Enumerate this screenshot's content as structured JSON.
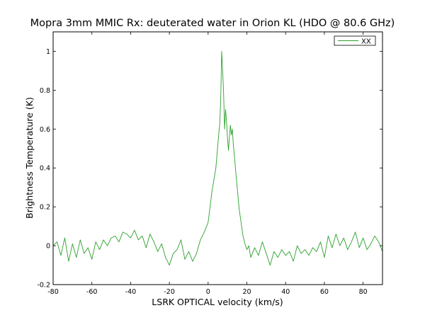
{
  "chart_data": {
    "type": "line",
    "title": "Mopra 3mm MMIC Rx: deuterated water in Orion KL (HDO @ 80.6 GHz)",
    "xlabel": "LSRK OPTICAL velocity (km/s)",
    "ylabel": "Brightness Temperature (K)",
    "xlim": [
      -80,
      90
    ],
    "ylim": [
      -0.2,
      1.1
    ],
    "xticks": [
      -80,
      -60,
      -40,
      -20,
      0,
      20,
      40,
      60,
      80
    ],
    "xtick_labels": [
      "-80",
      "-60",
      "-40",
      "-20",
      "0",
      "20",
      "40",
      "60",
      "80"
    ],
    "yticks": [
      -0.2,
      0,
      0.2,
      0.4,
      0.6,
      0.8,
      1
    ],
    "ytick_labels": [
      "-0.2",
      "0",
      "0.2",
      "0.4",
      "0.6",
      "0.8",
      "1"
    ],
    "grid": false,
    "legend_position": "top-right",
    "series": [
      {
        "name": "XX",
        "color": "#2ca02c",
        "x": [
          -80,
          -78,
          -76,
          -74,
          -72,
          -70,
          -68,
          -66,
          -64,
          -62,
          -60,
          -58,
          -56,
          -54,
          -52,
          -50,
          -48,
          -46,
          -44,
          -42,
          -40,
          -38,
          -36,
          -34,
          -32,
          -30,
          -28,
          -26,
          -24,
          -22,
          -20,
          -18,
          -16,
          -14,
          -12,
          -10,
          -8,
          -6,
          -4,
          -2,
          0,
          1,
          2,
          3,
          4,
          5,
          6,
          6.5,
          7,
          7.5,
          8,
          8.5,
          9,
          9.5,
          10,
          10.5,
          11,
          11.5,
          12,
          12.5,
          13,
          13.5,
          14,
          15,
          16,
          17,
          18,
          19,
          20,
          21,
          22,
          24,
          26,
          28,
          30,
          32,
          34,
          36,
          38,
          40,
          42,
          44,
          46,
          48,
          50,
          52,
          54,
          56,
          58,
          60,
          62,
          64,
          66,
          68,
          70,
          72,
          74,
          76,
          78,
          80,
          82,
          84,
          86,
          88,
          90
        ],
        "y": [
          0.0,
          0.02,
          -0.05,
          0.04,
          -0.08,
          0.01,
          -0.06,
          0.03,
          -0.04,
          -0.01,
          -0.07,
          0.02,
          -0.02,
          0.03,
          0.0,
          0.04,
          0.05,
          0.02,
          0.07,
          0.06,
          0.04,
          0.08,
          0.03,
          0.05,
          -0.01,
          0.06,
          0.02,
          -0.03,
          0.01,
          -0.06,
          -0.1,
          -0.04,
          -0.02,
          0.03,
          -0.07,
          -0.03,
          -0.08,
          -0.04,
          0.03,
          0.07,
          0.12,
          0.2,
          0.28,
          0.34,
          0.4,
          0.52,
          0.63,
          0.75,
          1.0,
          0.9,
          0.78,
          0.6,
          0.7,
          0.64,
          0.55,
          0.49,
          0.56,
          0.62,
          0.57,
          0.6,
          0.52,
          0.47,
          0.41,
          0.3,
          0.19,
          0.12,
          0.05,
          0.01,
          -0.02,
          0.0,
          -0.06,
          -0.01,
          -0.05,
          0.02,
          -0.04,
          -0.1,
          -0.03,
          -0.06,
          -0.02,
          -0.05,
          -0.03,
          -0.08,
          0.0,
          -0.04,
          -0.02,
          -0.05,
          -0.01,
          -0.03,
          0.02,
          -0.06,
          0.05,
          -0.01,
          0.06,
          0.0,
          0.04,
          -0.02,
          0.02,
          0.07,
          -0.01,
          0.04,
          -0.02,
          0.01,
          0.05,
          0.02,
          -0.03
        ]
      }
    ]
  }
}
